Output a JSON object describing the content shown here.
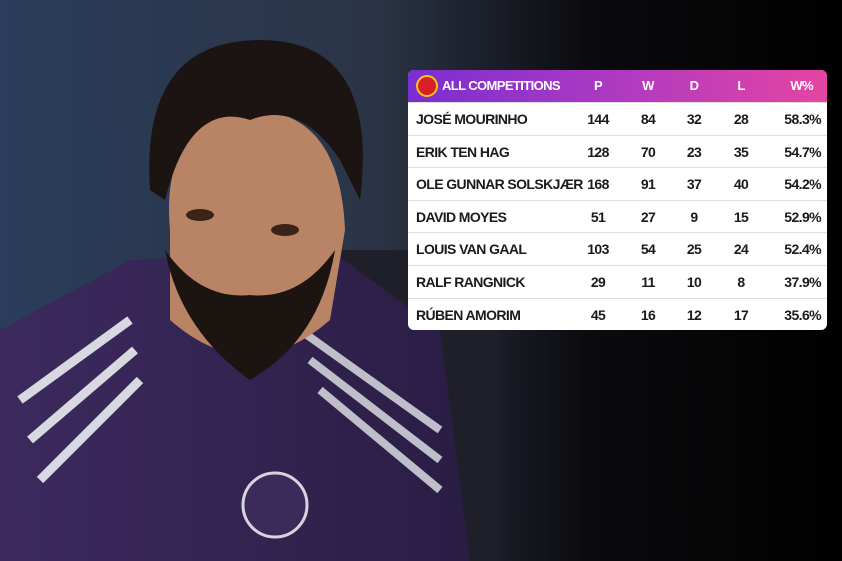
{
  "table": {
    "header": {
      "title": "ALL COMPETITIONS",
      "columns": [
        "P",
        "W",
        "D",
        "L",
        "W%"
      ]
    },
    "rows": [
      [
        "JOSÉ MOURINHO",
        144,
        84,
        32,
        28,
        "58.3%"
      ],
      [
        "ERIK TEN HAG",
        128,
        70,
        23,
        35,
        "54.7%"
      ],
      [
        "OLE GUNNAR SOLSKJÆR",
        168,
        91,
        37,
        40,
        "54.2%"
      ],
      [
        "DAVID MOYES",
        51,
        27,
        9,
        15,
        "52.9%"
      ],
      [
        "LOUIS VAN GAAL",
        103,
        54,
        25,
        24,
        "52.4%"
      ],
      [
        "RALF RANGNICK",
        29,
        11,
        10,
        8,
        "37.9%"
      ],
      [
        "RÚBEN AMORIM",
        45,
        16,
        12,
        17,
        "35.6%"
      ]
    ]
  }
}
